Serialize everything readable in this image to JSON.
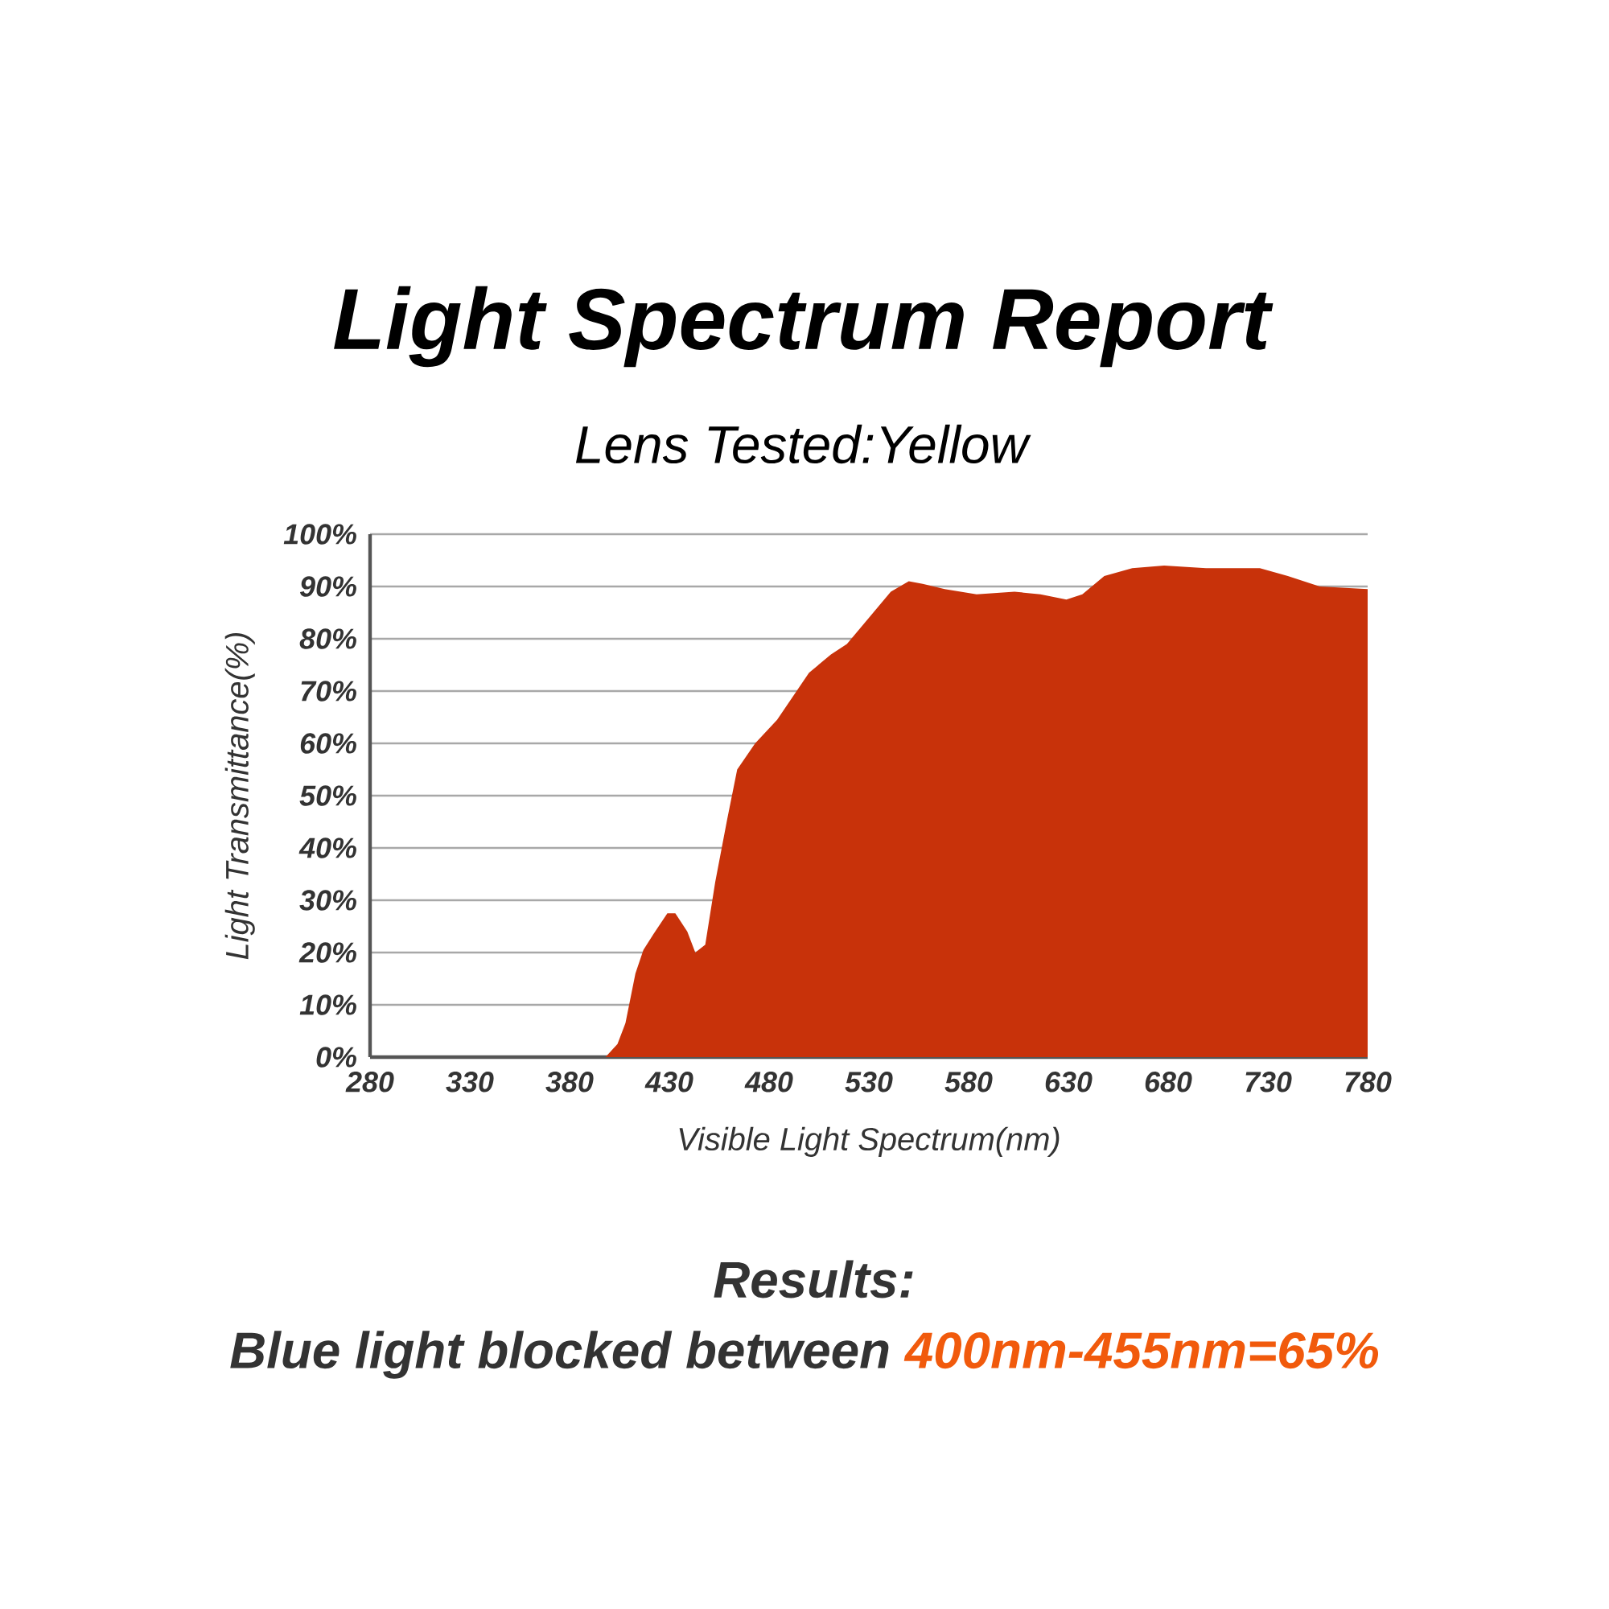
{
  "chart_data": {
    "type": "area",
    "title": "Light Spectrum Report",
    "subtitle": "Lens Tested:Yellow",
    "xlabel": "Visible Light Spectrum(nm)",
    "ylabel": "Light Transmittance(%)",
    "annotations": [
      "Results:",
      "Blue light blocked between",
      "400nm-455nm=65%"
    ],
    "x": [
      398,
      404,
      408,
      413,
      417,
      422,
      429,
      433,
      439,
      443,
      448,
      453,
      459,
      464,
      473,
      484,
      500,
      511,
      519,
      530,
      541,
      550,
      557,
      568,
      584,
      603,
      616,
      629,
      637,
      648,
      662,
      678,
      699,
      726,
      740,
      756,
      780
    ],
    "values": [
      0,
      2.5,
      6.5,
      16,
      20.5,
      23.5,
      27.5,
      27.5,
      24,
      20,
      21.5,
      33.5,
      45.5,
      55,
      60,
      64.5,
      73.5,
      77,
      79,
      84,
      89,
      91,
      90.5,
      89.5,
      88.5,
      89,
      88.5,
      87.5,
      88.5,
      92,
      93.5,
      94,
      93.5,
      93.5,
      92,
      90,
      89.5
    ],
    "color": "#c8320a",
    "xlim": [
      280,
      780
    ],
    "xticks": [
      280,
      330,
      380,
      430,
      480,
      530,
      580,
      630,
      680,
      730,
      780
    ],
    "ylim": [
      0,
      100
    ],
    "yticks": [
      {
        "value": 0,
        "label": "0%"
      },
      {
        "value": 10,
        "label": "10%"
      },
      {
        "value": 20,
        "label": "20%"
      },
      {
        "value": 30,
        "label": "30%"
      },
      {
        "value": 40,
        "label": "40%"
      },
      {
        "value": 50,
        "label": "50%"
      },
      {
        "value": 60,
        "label": "60%"
      },
      {
        "value": 70,
        "label": "70%"
      },
      {
        "value": 80,
        "label": "80%"
      },
      {
        "value": 90,
        "label": "90%"
      },
      {
        "value": 100,
        "label": "100%"
      }
    ],
    "grid": "y"
  }
}
